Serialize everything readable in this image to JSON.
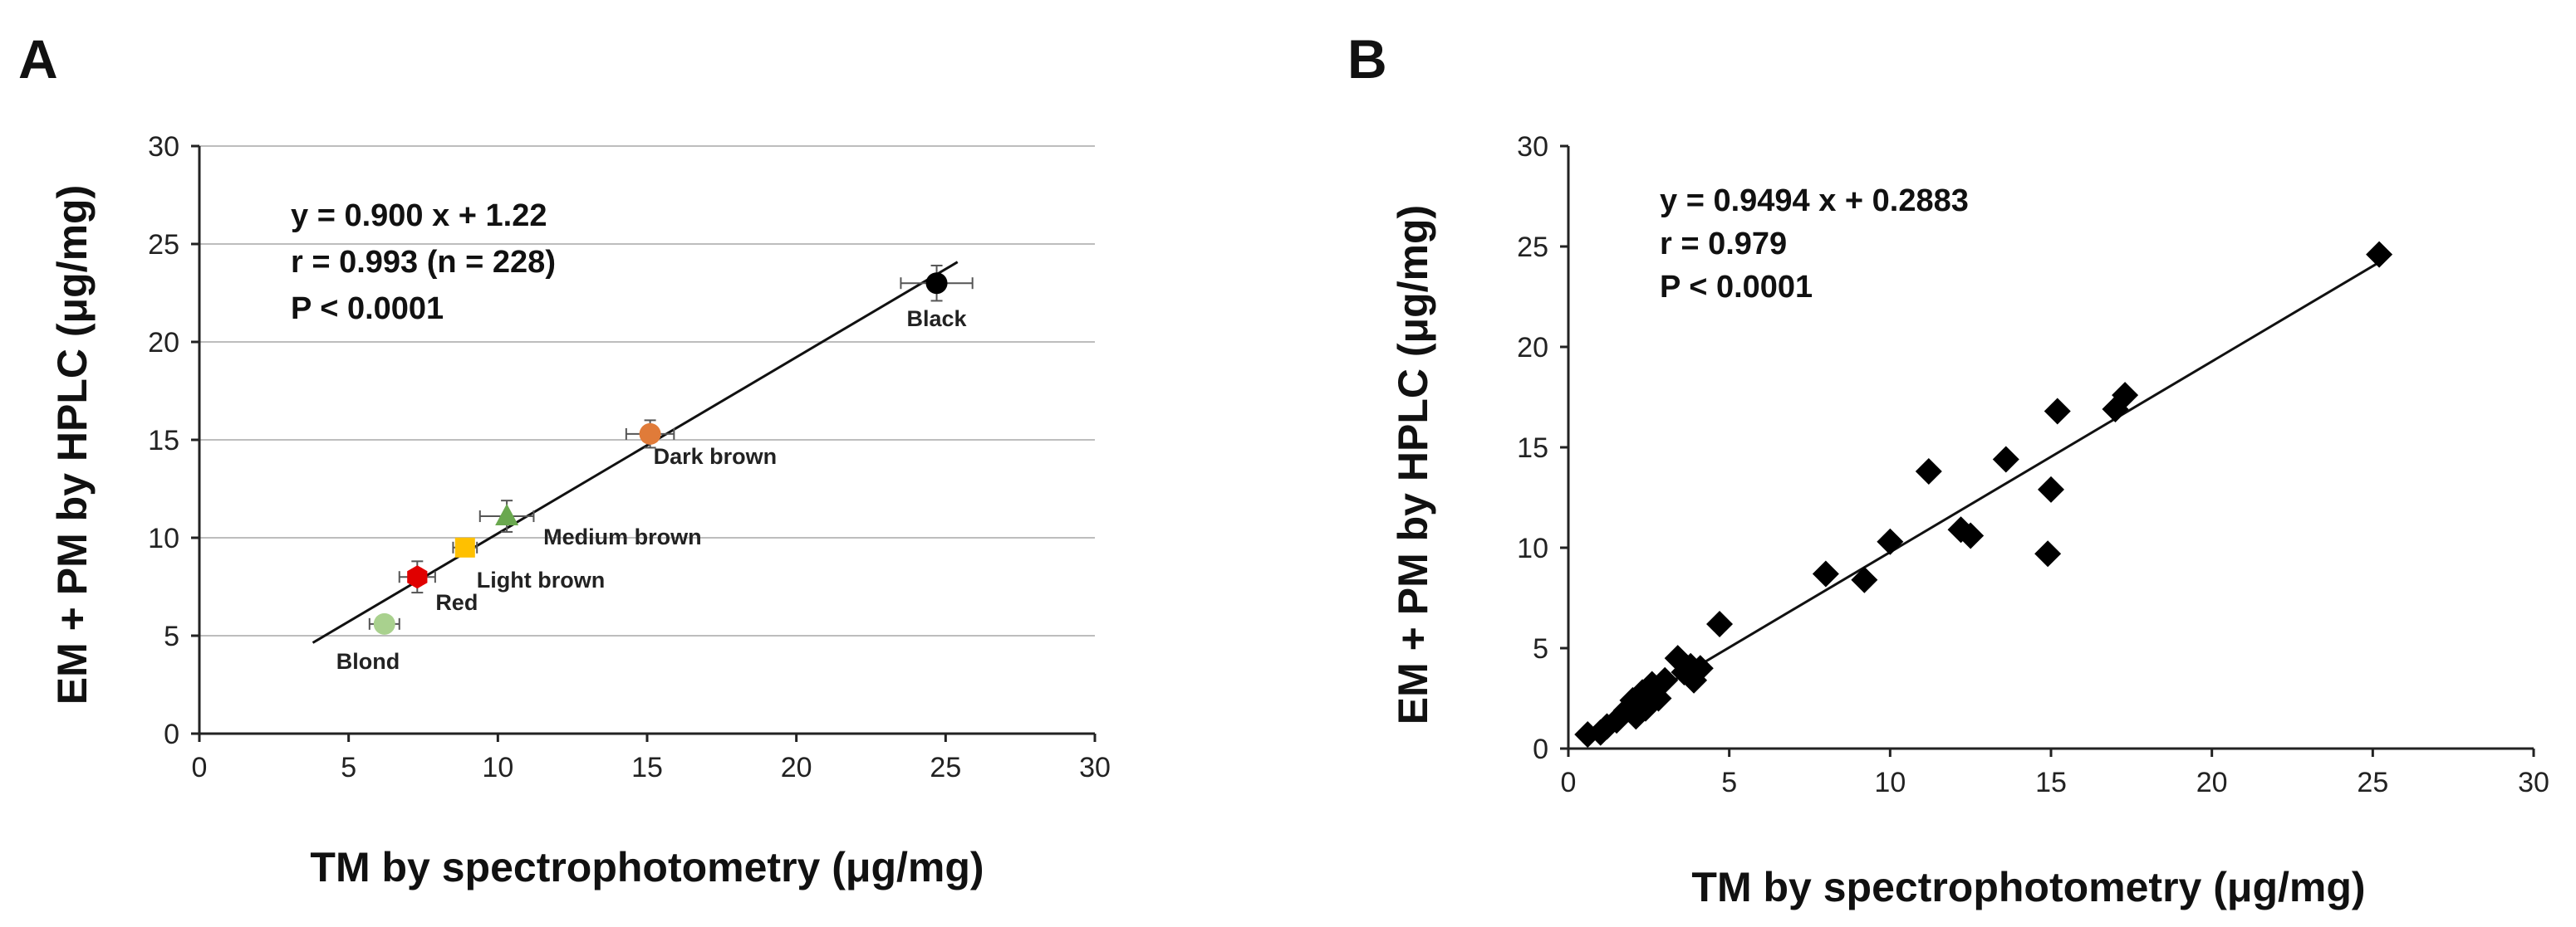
{
  "chart_data": [
    {
      "panel_label": "A",
      "type": "scatter",
      "xlabel": "TM by spectrophotometry (μg/mg)",
      "ylabel": "EM + PM by HPLC (μg/mg)",
      "xlim": [
        0,
        30
      ],
      "ylim": [
        0,
        30
      ],
      "xticks": [
        0,
        5,
        10,
        15,
        20,
        25,
        30
      ],
      "yticks": [
        0,
        5,
        10,
        15,
        20,
        25,
        30
      ],
      "grid": "horizontal",
      "annotations": [
        "y = 0.900 x + 1.22",
        "r = 0.993 (n = 228)",
        "P < 0.0001"
      ],
      "regression": {
        "slope": 0.9,
        "intercept": 1.22,
        "x_range": [
          3.8,
          25.4
        ]
      },
      "points": [
        {
          "name": "Black",
          "x": 24.7,
          "y": 23.0,
          "x_err": 1.2,
          "y_err": 0.9,
          "color": "#000000",
          "marker": "circle"
        },
        {
          "name": "Dark brown",
          "x": 15.1,
          "y": 15.3,
          "x_err": 0.8,
          "y_err": 0.7,
          "color": "#e07b39",
          "marker": "circle"
        },
        {
          "name": "Medium brown",
          "x": 10.3,
          "y": 11.1,
          "x_err": 0.9,
          "y_err": 0.8,
          "color": "#6aa84f",
          "marker": "triangle"
        },
        {
          "name": "Light brown",
          "x": 8.9,
          "y": 9.5,
          "x_err": 0.4,
          "y_err": 0.4,
          "color": "#ffc000",
          "marker": "square"
        },
        {
          "name": "Red",
          "x": 7.3,
          "y": 8.0,
          "x_err": 0.6,
          "y_err": 0.8,
          "color": "#e00000",
          "marker": "hexagon"
        },
        {
          "name": "Blond",
          "x": 6.2,
          "y": 5.6,
          "x_err": 0.5,
          "y_err": 0.4,
          "color": "#a9d18e",
          "marker": "circle"
        }
      ]
    },
    {
      "panel_label": "B",
      "type": "scatter",
      "xlabel": "TM by spectrophotometry (μg/mg)",
      "ylabel": "EM + PM by HPLC (μg/mg)",
      "xlim": [
        0,
        30
      ],
      "ylim": [
        0,
        30
      ],
      "xticks": [
        0,
        5,
        10,
        15,
        20,
        25,
        30
      ],
      "yticks": [
        0,
        5,
        10,
        15,
        20,
        25,
        30
      ],
      "grid": "none",
      "annotations": [
        "y = 0.9494 x + 0.2883",
        "r = 0.979",
        "P < 0.0001"
      ],
      "regression": {
        "slope": 0.9494,
        "intercept": 0.2883,
        "x_range": [
          0.5,
          25.2
        ]
      },
      "points": [
        {
          "x": 0.6,
          "y": 0.7
        },
        {
          "x": 1.0,
          "y": 0.8
        },
        {
          "x": 1.2,
          "y": 1.1
        },
        {
          "x": 1.5,
          "y": 1.4
        },
        {
          "x": 1.8,
          "y": 1.9
        },
        {
          "x": 2.0,
          "y": 2.4
        },
        {
          "x": 2.1,
          "y": 1.6
        },
        {
          "x": 2.3,
          "y": 2.8
        },
        {
          "x": 2.4,
          "y": 2.0
        },
        {
          "x": 2.6,
          "y": 3.2
        },
        {
          "x": 2.8,
          "y": 2.5
        },
        {
          "x": 3.0,
          "y": 3.4
        },
        {
          "x": 3.4,
          "y": 4.5
        },
        {
          "x": 3.6,
          "y": 3.8
        },
        {
          "x": 3.8,
          "y": 4.1
        },
        {
          "x": 3.9,
          "y": 3.4
        },
        {
          "x": 4.1,
          "y": 4.0
        },
        {
          "x": 4.7,
          "y": 6.2
        },
        {
          "x": 8.0,
          "y": 8.7
        },
        {
          "x": 9.2,
          "y": 8.4
        },
        {
          "x": 10.0,
          "y": 10.3
        },
        {
          "x": 11.2,
          "y": 13.8
        },
        {
          "x": 12.2,
          "y": 10.9
        },
        {
          "x": 12.5,
          "y": 10.6
        },
        {
          "x": 13.6,
          "y": 14.4
        },
        {
          "x": 14.9,
          "y": 9.7
        },
        {
          "x": 15.0,
          "y": 12.9
        },
        {
          "x": 15.2,
          "y": 16.8
        },
        {
          "x": 17.0,
          "y": 16.9
        },
        {
          "x": 17.3,
          "y": 17.6
        },
        {
          "x": 25.2,
          "y": 24.6
        }
      ]
    }
  ]
}
